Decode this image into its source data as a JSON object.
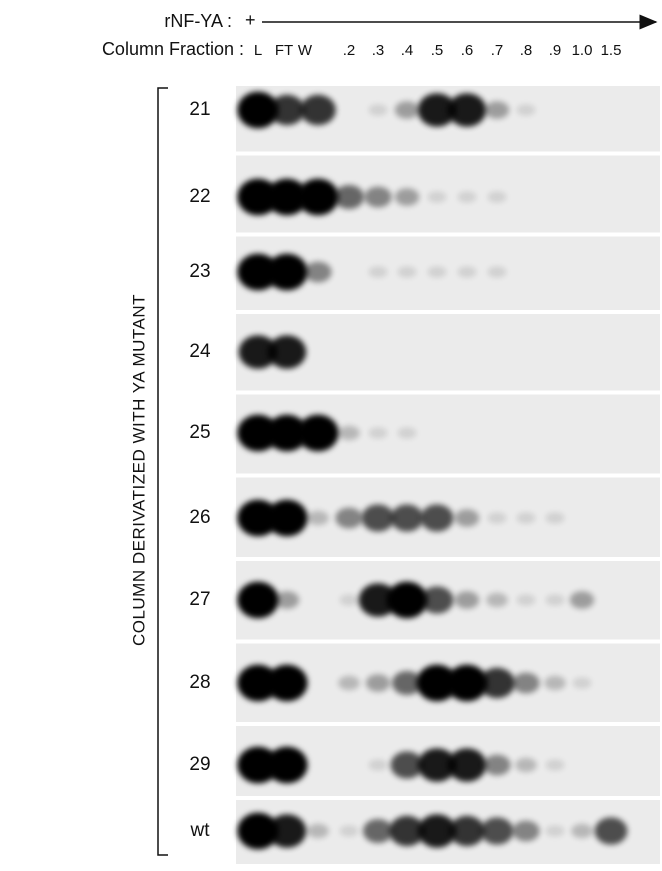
{
  "header": {
    "treatment_label": "rNF-YA :",
    "treatment_sign": "+",
    "fraction_label": "Column Fraction :",
    "lanes": [
      "L",
      "FT",
      "W",
      ".2",
      ".3",
      ".4",
      ".5",
      ".6",
      ".7",
      ".8",
      ".9",
      "1.0",
      "1.5"
    ]
  },
  "side_label": "COLUMN DERIVATIZED WITH YA MUTANT",
  "rows": [
    "21",
    "22",
    "23",
    "24",
    "25",
    "26",
    "27",
    "28",
    "29",
    "wt"
  ]
}
